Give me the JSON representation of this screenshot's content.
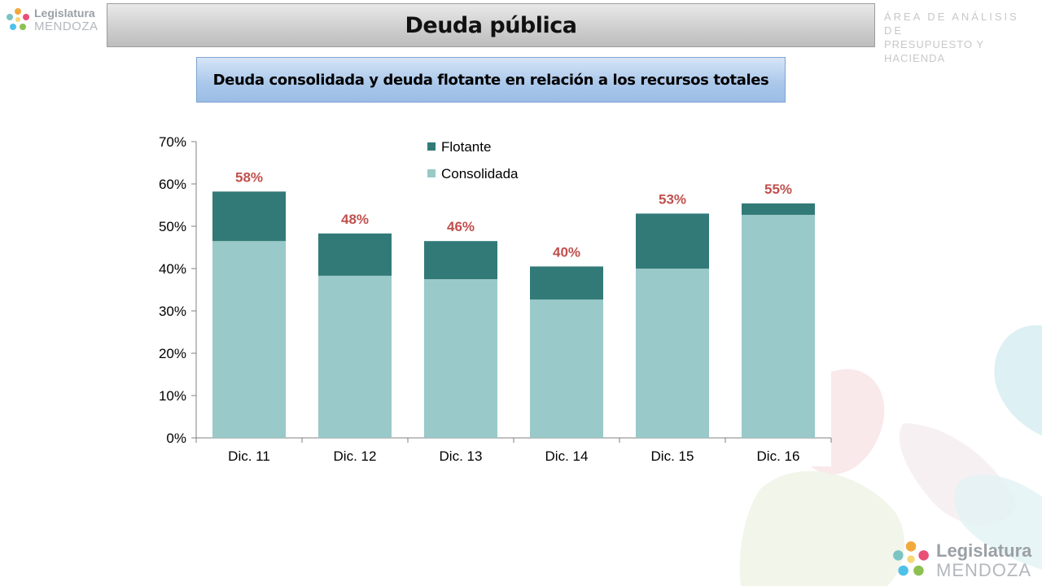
{
  "brand": {
    "logo_line1": "Legislatura",
    "logo_line2": "MENDOZA",
    "area_line1": "ÁREA DE ANÁLISIS DE",
    "area_line2": "PRESUPUESTO Y HACIENDA"
  },
  "slide": {
    "title": "Deuda pública",
    "subtitle": "Deuda consolidada y deuda flotante en relación a los recursos totales"
  },
  "colors": {
    "consolidada": "#99c9c8",
    "flotante": "#327a77",
    "total_label": "#c0504d",
    "title_bar": "#cfcfcf",
    "subtitle_box": "#a9c7ea"
  },
  "chart_data": {
    "type": "bar",
    "stacked": true,
    "categories": [
      "Dic. 11",
      "Dic. 12",
      "Dic. 13",
      "Dic. 14",
      "Dic. 15",
      "Dic. 16"
    ],
    "series": [
      {
        "name": "Consolidada",
        "values": [
          46.5,
          38.3,
          37.5,
          32.7,
          40.0,
          52.7
        ]
      },
      {
        "name": "Flotante",
        "values": [
          11.7,
          10.0,
          9.0,
          7.8,
          13.0,
          2.7
        ]
      }
    ],
    "totals": [
      "58%",
      "48%",
      "46%",
      "40%",
      "53%",
      "55%"
    ],
    "yticks": [
      "0%",
      "10%",
      "20%",
      "30%",
      "40%",
      "50%",
      "60%",
      "70%"
    ],
    "ylim": [
      0,
      70
    ],
    "legend_position": "top-center",
    "legend_order": [
      "Flotante",
      "Consolidada"
    ],
    "grid": false
  }
}
